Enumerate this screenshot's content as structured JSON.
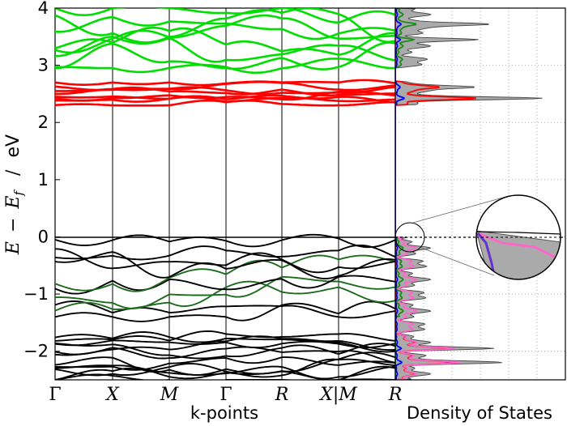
{
  "chart_data": [
    {
      "type": "line",
      "subtype": "band-structure",
      "title": "",
      "xlabel": "k-points",
      "ylabel": "E − E_f / eV",
      "ylabel_parts": {
        "e": "E",
        "minus": "−",
        "ef": "E",
        "sub": "f",
        "sep": "/",
        "unit": "eV"
      },
      "ylim": [
        -2.5,
        4
      ],
      "yticks": [
        -2,
        -1,
        0,
        1,
        2,
        3,
        4
      ],
      "ytick_labels": [
        "−2",
        "−1",
        "0",
        "1",
        "2",
        "3",
        "4"
      ],
      "kpoint_labels": [
        "Γ",
        "X",
        "M",
        "Γ",
        "R",
        "X|M",
        "R"
      ],
      "kpoint_positions": [
        0,
        1,
        2,
        3,
        4,
        5,
        6
      ],
      "fermi_level": 0.0,
      "band_groups": [
        {
          "name": "conduction-upper",
          "color": "#00dd00",
          "approx_energy_range": [
            2.95,
            4.0
          ],
          "count": 8
        },
        {
          "name": "conduction-lower",
          "color": "#ff0000",
          "approx_energy_range": [
            2.3,
            2.7
          ],
          "count": 8
        },
        {
          "name": "valence-upper",
          "color": "#000000",
          "highlight_color": "#1e6b1e",
          "approx_energy_range": [
            -1.4,
            0.0
          ],
          "count": 10
        },
        {
          "name": "valence-lower",
          "color": "#000000",
          "approx_energy_range": [
            -2.5,
            -1.7
          ],
          "count": 12
        }
      ]
    },
    {
      "type": "area",
      "subtype": "density-of-states",
      "xlabel": "Density of States",
      "ylim": [
        -2.5,
        4
      ],
      "series": [
        {
          "name": "total",
          "color": "#aaaaaa"
        },
        {
          "name": "partial-green",
          "color": "#1a8a1a"
        },
        {
          "name": "partial-red",
          "color": "#ff0000"
        },
        {
          "name": "partial-pink",
          "color": "#ff66cc"
        },
        {
          "name": "partial-blue",
          "color": "#0000ff"
        }
      ],
      "peaks": [
        {
          "energy": 3.72,
          "relative_height": 0.55
        },
        {
          "energy": 3.45,
          "relative_height": 0.4
        },
        {
          "energy": 2.42,
          "relative_height": 0.85
        },
        {
          "energy": 2.62,
          "relative_height": 0.45
        },
        {
          "energy": -1.95,
          "relative_height": 0.5
        },
        {
          "energy": -2.2,
          "relative_height": 0.55
        }
      ],
      "inset": "magnified view near Fermi level"
    }
  ]
}
